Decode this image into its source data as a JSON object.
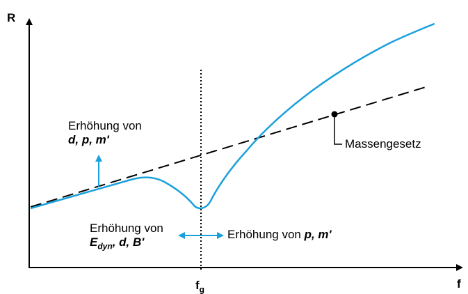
{
  "axes": {
    "y_label": "R",
    "x_label": "f",
    "x_tick": {
      "main": "f",
      "sub": "g"
    }
  },
  "annotations": {
    "top_left": {
      "line1": "Erhöhung von",
      "line2": "d, p, m'"
    },
    "bottom_left": {
      "line1": "Erhöhung von",
      "sym": "E",
      "sym_sub": "dyn",
      "rest": ", d, B'"
    },
    "right_arrow": {
      "prefix": "Erhöhung von ",
      "vars": "p, m'"
    },
    "mass_law": "Massengesetz"
  },
  "colors": {
    "curve": "#1aa0dc",
    "axis": "#000000",
    "dashed": "#000000"
  }
}
